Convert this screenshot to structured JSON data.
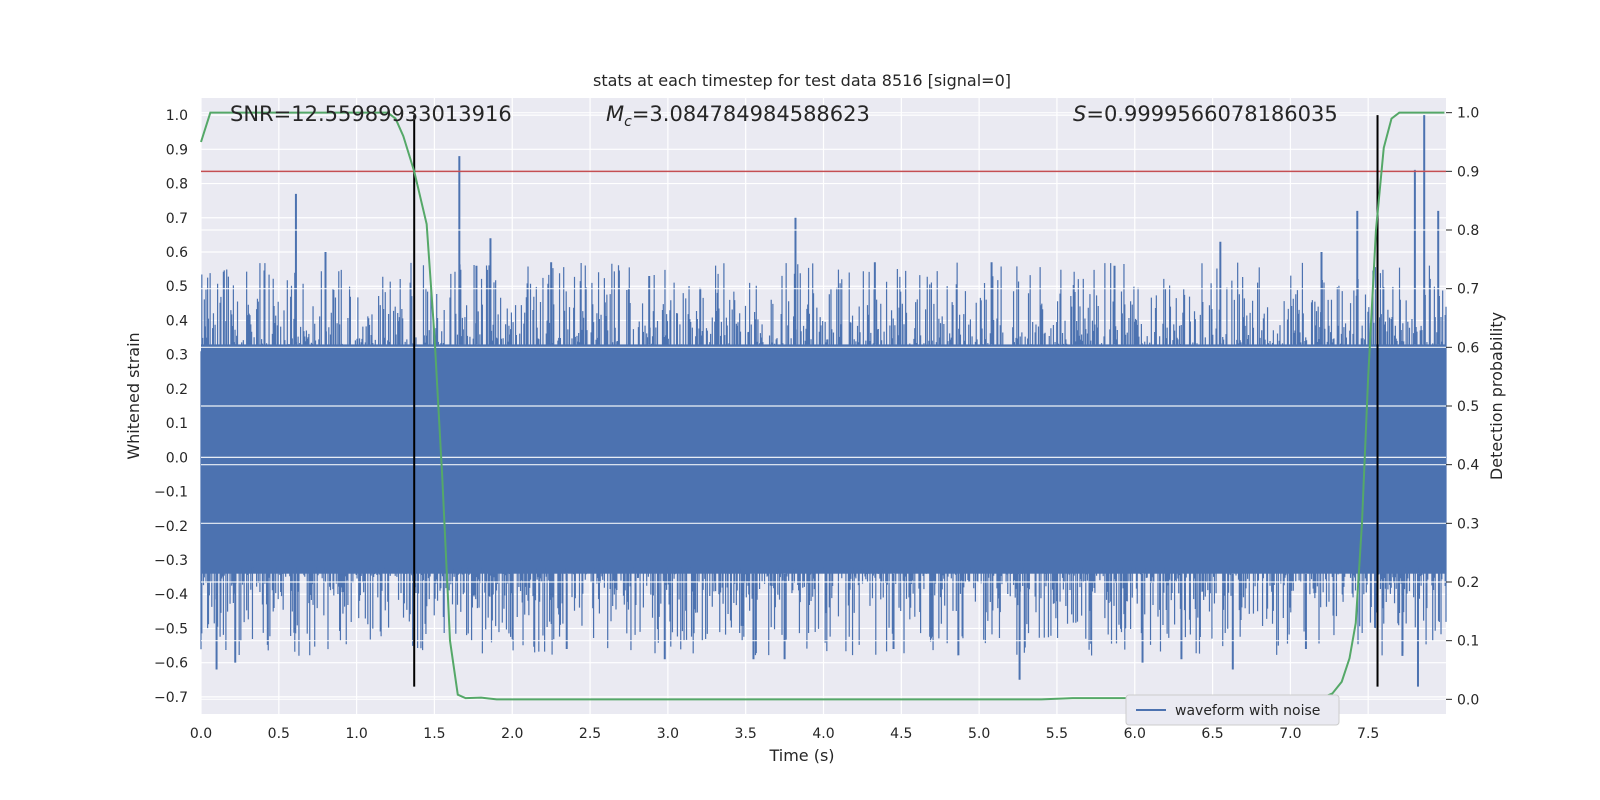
{
  "chart_data": {
    "type": "line",
    "title": "stats at each timestep for test data 8516 [signal=0]",
    "xlabel": "Time (s)",
    "ylabel": "Whitened strain",
    "ylabel_right": "Detection probability",
    "xlim": [
      0.0,
      8.0
    ],
    "ylim": [
      -0.75,
      1.05
    ],
    "ylim_right": [
      -0.025,
      1.025
    ],
    "xticks": [
      0.0,
      0.5,
      1.0,
      1.5,
      2.0,
      2.5,
      3.0,
      3.5,
      4.0,
      4.5,
      5.0,
      5.5,
      6.0,
      6.5,
      7.0,
      7.5
    ],
    "xtick_labels": [
      "0.0",
      "0.5",
      "1.0",
      "1.5",
      "2.0",
      "2.5",
      "3.0",
      "3.5",
      "4.0",
      "4.5",
      "5.0",
      "5.5",
      "6.0",
      "6.5",
      "7.0",
      "7.5"
    ],
    "yticks": [
      -0.7,
      -0.6,
      -0.5,
      -0.4,
      -0.3,
      -0.2,
      -0.1,
      0.0,
      0.1,
      0.2,
      0.3,
      0.4,
      0.5,
      0.6,
      0.7,
      0.8,
      0.9,
      1.0
    ],
    "ytick_labels": [
      "−0.7",
      "−0.6",
      "−0.5",
      "−0.4",
      "−0.3",
      "−0.2",
      "−0.1",
      "0.0",
      "0.1",
      "0.2",
      "0.3",
      "0.4",
      "0.5",
      "0.6",
      "0.7",
      "0.8",
      "0.9",
      "1.0"
    ],
    "yticks_right": [
      0.0,
      0.1,
      0.2,
      0.3,
      0.4,
      0.5,
      0.6,
      0.7,
      0.8,
      0.9,
      1.0
    ],
    "ytick_labels_right": [
      "0.0",
      "0.1",
      "0.2",
      "0.3",
      "0.4",
      "0.5",
      "0.6",
      "0.7",
      "0.8",
      "0.9",
      "1.0"
    ],
    "annotations": {
      "snr": "SNR=12.55989933013916",
      "mc_symbol": "M",
      "mc_sub": "c",
      "mc_value": "=3.084784984588623",
      "s_symbol": "S",
      "s_value": "=0.9999566078186035"
    },
    "threshold": 0.9,
    "vlines": [
      1.37,
      7.56
    ],
    "legend": {
      "label": "waveform with noise",
      "placement": "lower-right"
    },
    "waveform": {
      "name": "waveform with noise",
      "color": "#4c72b0",
      "duration": 8.0,
      "band_upper": 0.33,
      "band_lower": -0.34,
      "spikes": [
        {
          "t": 0.61,
          "v": 0.77
        },
        {
          "t": 0.8,
          "v": 0.6
        },
        {
          "t": 1.66,
          "v": 0.88
        },
        {
          "t": 1.86,
          "v": 0.64
        },
        {
          "t": 1.77,
          "v": 0.56
        },
        {
          "t": 2.25,
          "v": 0.57
        },
        {
          "t": 2.88,
          "v": 0.53
        },
        {
          "t": 3.82,
          "v": 0.7
        },
        {
          "t": 4.33,
          "v": 0.57
        },
        {
          "t": 5.08,
          "v": 0.57
        },
        {
          "t": 5.87,
          "v": 0.56
        },
        {
          "t": 6.55,
          "v": 0.63
        },
        {
          "t": 7.2,
          "v": 0.6
        },
        {
          "t": 7.43,
          "v": 0.72
        },
        {
          "t": 7.8,
          "v": 0.84
        },
        {
          "t": 7.86,
          "v": 1.0
        },
        {
          "t": 7.95,
          "v": 0.72
        },
        {
          "t": 0.1,
          "v": -0.62
        },
        {
          "t": 0.22,
          "v": -0.6
        },
        {
          "t": 2.35,
          "v": -0.56
        },
        {
          "t": 2.98,
          "v": -0.59
        },
        {
          "t": 3.55,
          "v": -0.59
        },
        {
          "t": 3.75,
          "v": -0.59
        },
        {
          "t": 4.45,
          "v": -0.56
        },
        {
          "t": 5.26,
          "v": -0.65
        },
        {
          "t": 6.05,
          "v": -0.6
        },
        {
          "t": 6.3,
          "v": -0.59
        },
        {
          "t": 6.63,
          "v": -0.62
        },
        {
          "t": 7.1,
          "v": -0.56
        },
        {
          "t": 7.82,
          "v": -0.67
        },
        {
          "t": 7.72,
          "v": -0.58
        }
      ]
    },
    "probability": {
      "name": "Detection probability",
      "color": "#55a868",
      "x": [
        0.0,
        0.06,
        0.2,
        0.4,
        0.6,
        0.8,
        1.0,
        1.2,
        1.25,
        1.3,
        1.37,
        1.45,
        1.5,
        1.55,
        1.6,
        1.65,
        1.7,
        1.8,
        1.9,
        2.0,
        2.5,
        3.0,
        3.5,
        3.95,
        4.1,
        4.5,
        5.0,
        5.4,
        5.6,
        5.8,
        6.0,
        6.5,
        7.0,
        7.2,
        7.27,
        7.33,
        7.38,
        7.42,
        7.46,
        7.5,
        7.55,
        7.6,
        7.65,
        7.7,
        7.8,
        7.9,
        7.99
      ],
      "values": [
        0.95,
        1.0,
        1.0,
        1.0,
        1.0,
        1.0,
        1.0,
        1.0,
        0.99,
        0.96,
        0.9,
        0.81,
        0.62,
        0.38,
        0.1,
        0.008,
        0.002,
        0.003,
        0.0,
        0.0,
        0.0,
        0.0,
        0.0,
        0.0,
        0.0,
        0.0,
        0.0,
        0.0,
        0.002,
        0.002,
        0.002,
        0.0,
        0.0,
        0.002,
        0.01,
        0.03,
        0.07,
        0.13,
        0.3,
        0.55,
        0.8,
        0.94,
        0.99,
        1.0,
        1.0,
        1.0,
        1.0
      ]
    }
  }
}
